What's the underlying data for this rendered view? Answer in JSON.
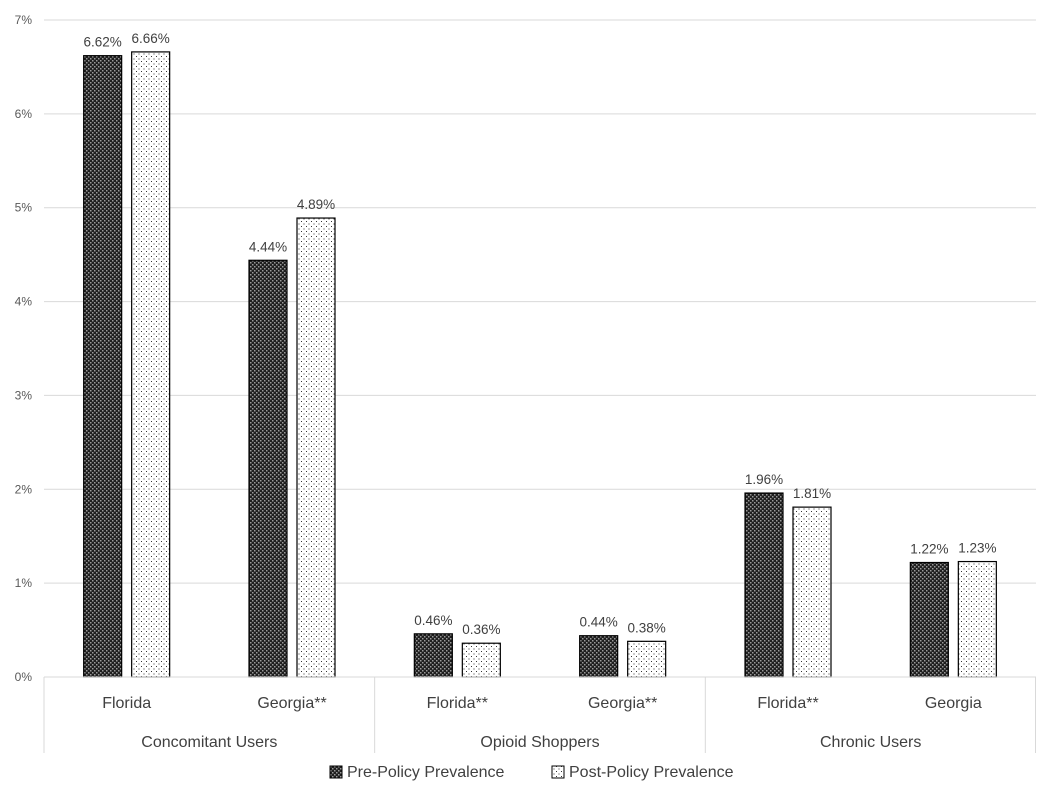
{
  "chart_data": {
    "type": "bar",
    "title": "",
    "xlabel": "",
    "ylabel": "",
    "ylim": [
      0,
      7
    ],
    "y_ticks": [
      0,
      1,
      2,
      3,
      4,
      5,
      6,
      7
    ],
    "y_tick_format": "percent",
    "grid": true,
    "legend_position": "bottom",
    "groups": [
      {
        "label": "Concomitant Users",
        "categories": [
          "Florida",
          "Georgia**"
        ]
      },
      {
        "label": "Opioid Shoppers",
        "categories": [
          "Florida**",
          "Georgia**"
        ]
      },
      {
        "label": "Chronic Users",
        "categories": [
          "Florida**",
          "Georgia"
        ]
      }
    ],
    "categories": [
      "Florida",
      "Georgia**",
      "Florida**",
      "Georgia**",
      "Florida**",
      "Georgia"
    ],
    "series": [
      {
        "name": "Pre-Policy Prevalence",
        "pattern": "crosshatch-dark",
        "values": [
          6.62,
          4.44,
          0.46,
          0.44,
          1.96,
          1.22
        ],
        "labels": [
          "6.62%",
          "4.44%",
          "0.46%",
          "0.44%",
          "1.96%",
          "1.22%"
        ]
      },
      {
        "name": "Post-Policy Prevalence",
        "pattern": "dots-light",
        "values": [
          6.66,
          4.89,
          0.36,
          0.38,
          1.81,
          1.23
        ],
        "labels": [
          "6.66%",
          "4.89%",
          "0.36%",
          "0.38%",
          "1.81%",
          "1.23%"
        ]
      }
    ]
  },
  "colors": {
    "grid": "#d9d9d9",
    "axis_text": "#595959",
    "label_text": "#404040",
    "bar_stroke": "#000000"
  }
}
